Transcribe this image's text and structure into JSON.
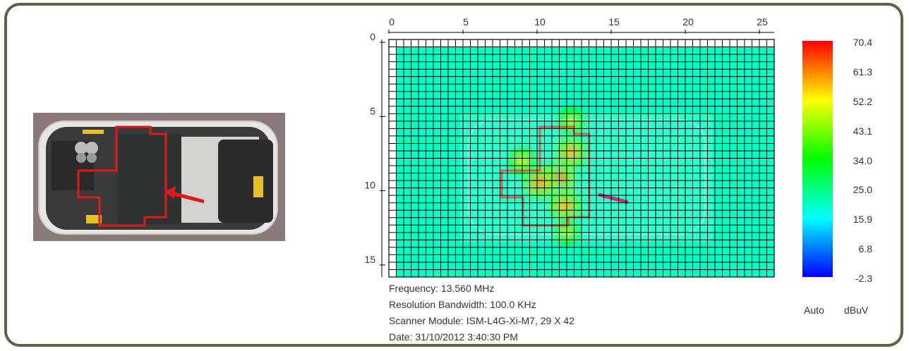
{
  "info": {
    "frequency": "Frequency: 13.560 MHz",
    "rbw": "Resolution Bandwidth: 100.0 KHz",
    "scanner": "Scanner Module: ISM-L4G-Xi-M7, 29 X 42",
    "date": "Date: 31/10/2012 3:40:30 PM"
  },
  "colorbar": {
    "labels": [
      "70.4",
      "61.3",
      "52.2",
      "43.1",
      "34.0",
      "25.0",
      "15.9",
      "6.8",
      "-2.3"
    ],
    "mode": "Auto",
    "unit": "dBuV"
  },
  "chart_data": {
    "type": "heatmap",
    "x_ticks": [
      0,
      5,
      10,
      15,
      20,
      25
    ],
    "y_ticks": [
      0,
      5,
      10,
      15
    ],
    "xlim": [
      0,
      26
    ],
    "ylim": [
      0,
      16
    ],
    "grid": true,
    "color_scale": {
      "min": -2.3,
      "max": 70.4,
      "unit": "dBuV",
      "colors": [
        "#0000ff",
        "#00ffff",
        "#00ff00",
        "#ffff00",
        "#ff0000"
      ]
    },
    "background_value": 20,
    "hotspots": [
      {
        "x": 11.5,
        "y": 9.3,
        "value": 62
      },
      {
        "x": 12.3,
        "y": 7.6,
        "value": 58
      },
      {
        "x": 10.2,
        "y": 9.6,
        "value": 60
      },
      {
        "x": 11.9,
        "y": 11.2,
        "value": 58
      },
      {
        "x": 12.3,
        "y": 5.5,
        "value": 46
      },
      {
        "x": 9.0,
        "y": 8.2,
        "value": 48
      },
      {
        "x": 12.0,
        "y": 13.0,
        "value": 44
      }
    ]
  }
}
